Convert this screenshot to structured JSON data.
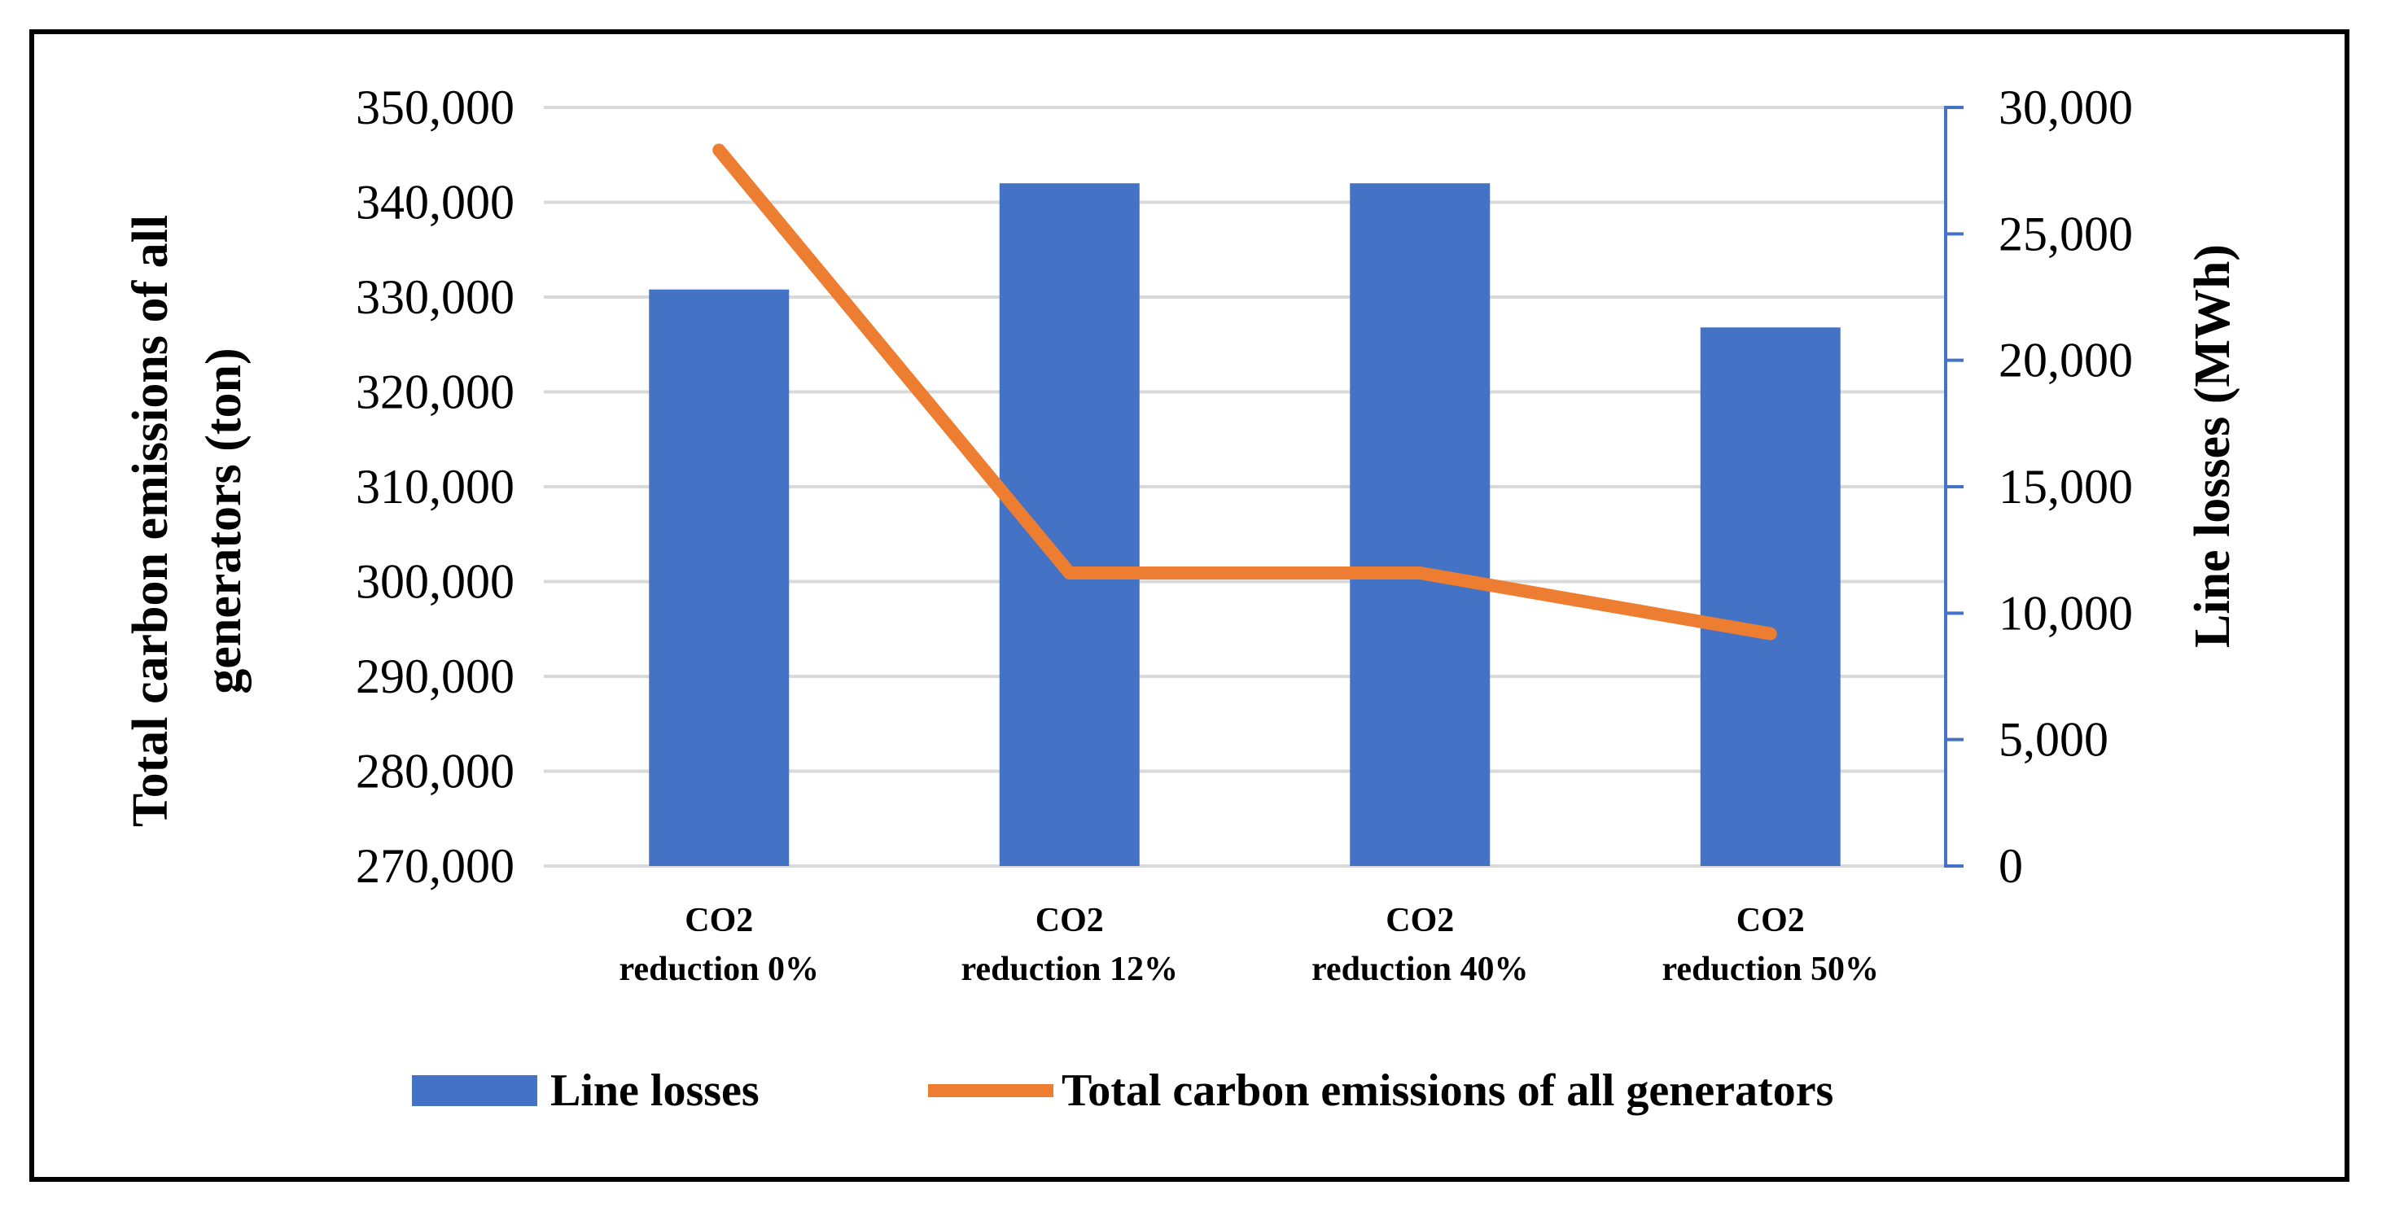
{
  "chart_data": {
    "type": "bar",
    "title": "",
    "categories": [
      [
        "CO2",
        "reduction 0%"
      ],
      [
        "CO2",
        "reduction 12%"
      ],
      [
        "CO2",
        "reduction 40%"
      ],
      [
        "CO2",
        "reduction 50%"
      ]
    ],
    "series": [
      {
        "name": "Line losses",
        "type": "bar",
        "axis": "right",
        "color": "#4472C4",
        "values": [
          22800,
          27000,
          27000,
          21300
        ]
      },
      {
        "name": "Total carbon emissions of all generators",
        "type": "line",
        "axis": "left",
        "color": "#ED7D31",
        "values": [
          345500,
          300900,
          300900,
          294500
        ]
      }
    ],
    "left_axis": {
      "label_lines": [
        "Total carbon emissions of all",
        "generators (ton)"
      ],
      "ylim": [
        270000,
        350000
      ],
      "ticks": [
        "270,000",
        "280,000",
        "290,000",
        "300,000",
        "310,000",
        "320,000",
        "330,000",
        "340,000",
        "350,000"
      ],
      "tick_values": [
        270000,
        280000,
        290000,
        300000,
        310000,
        320000,
        330000,
        340000,
        350000
      ]
    },
    "right_axis": {
      "label": "Line losses (MWh)",
      "ylim": [
        0,
        30000
      ],
      "ticks": [
        "0",
        "5,000",
        "10,000",
        "15,000",
        "20,000",
        "25,000",
        "30,000"
      ],
      "tick_values": [
        0,
        5000,
        10000,
        15000,
        20000,
        25000,
        30000
      ],
      "color": "#4472C4"
    },
    "grid": true,
    "legend": {
      "position": "bottom",
      "items": [
        "Line losses",
        "Total carbon emissions of all generators"
      ]
    }
  }
}
